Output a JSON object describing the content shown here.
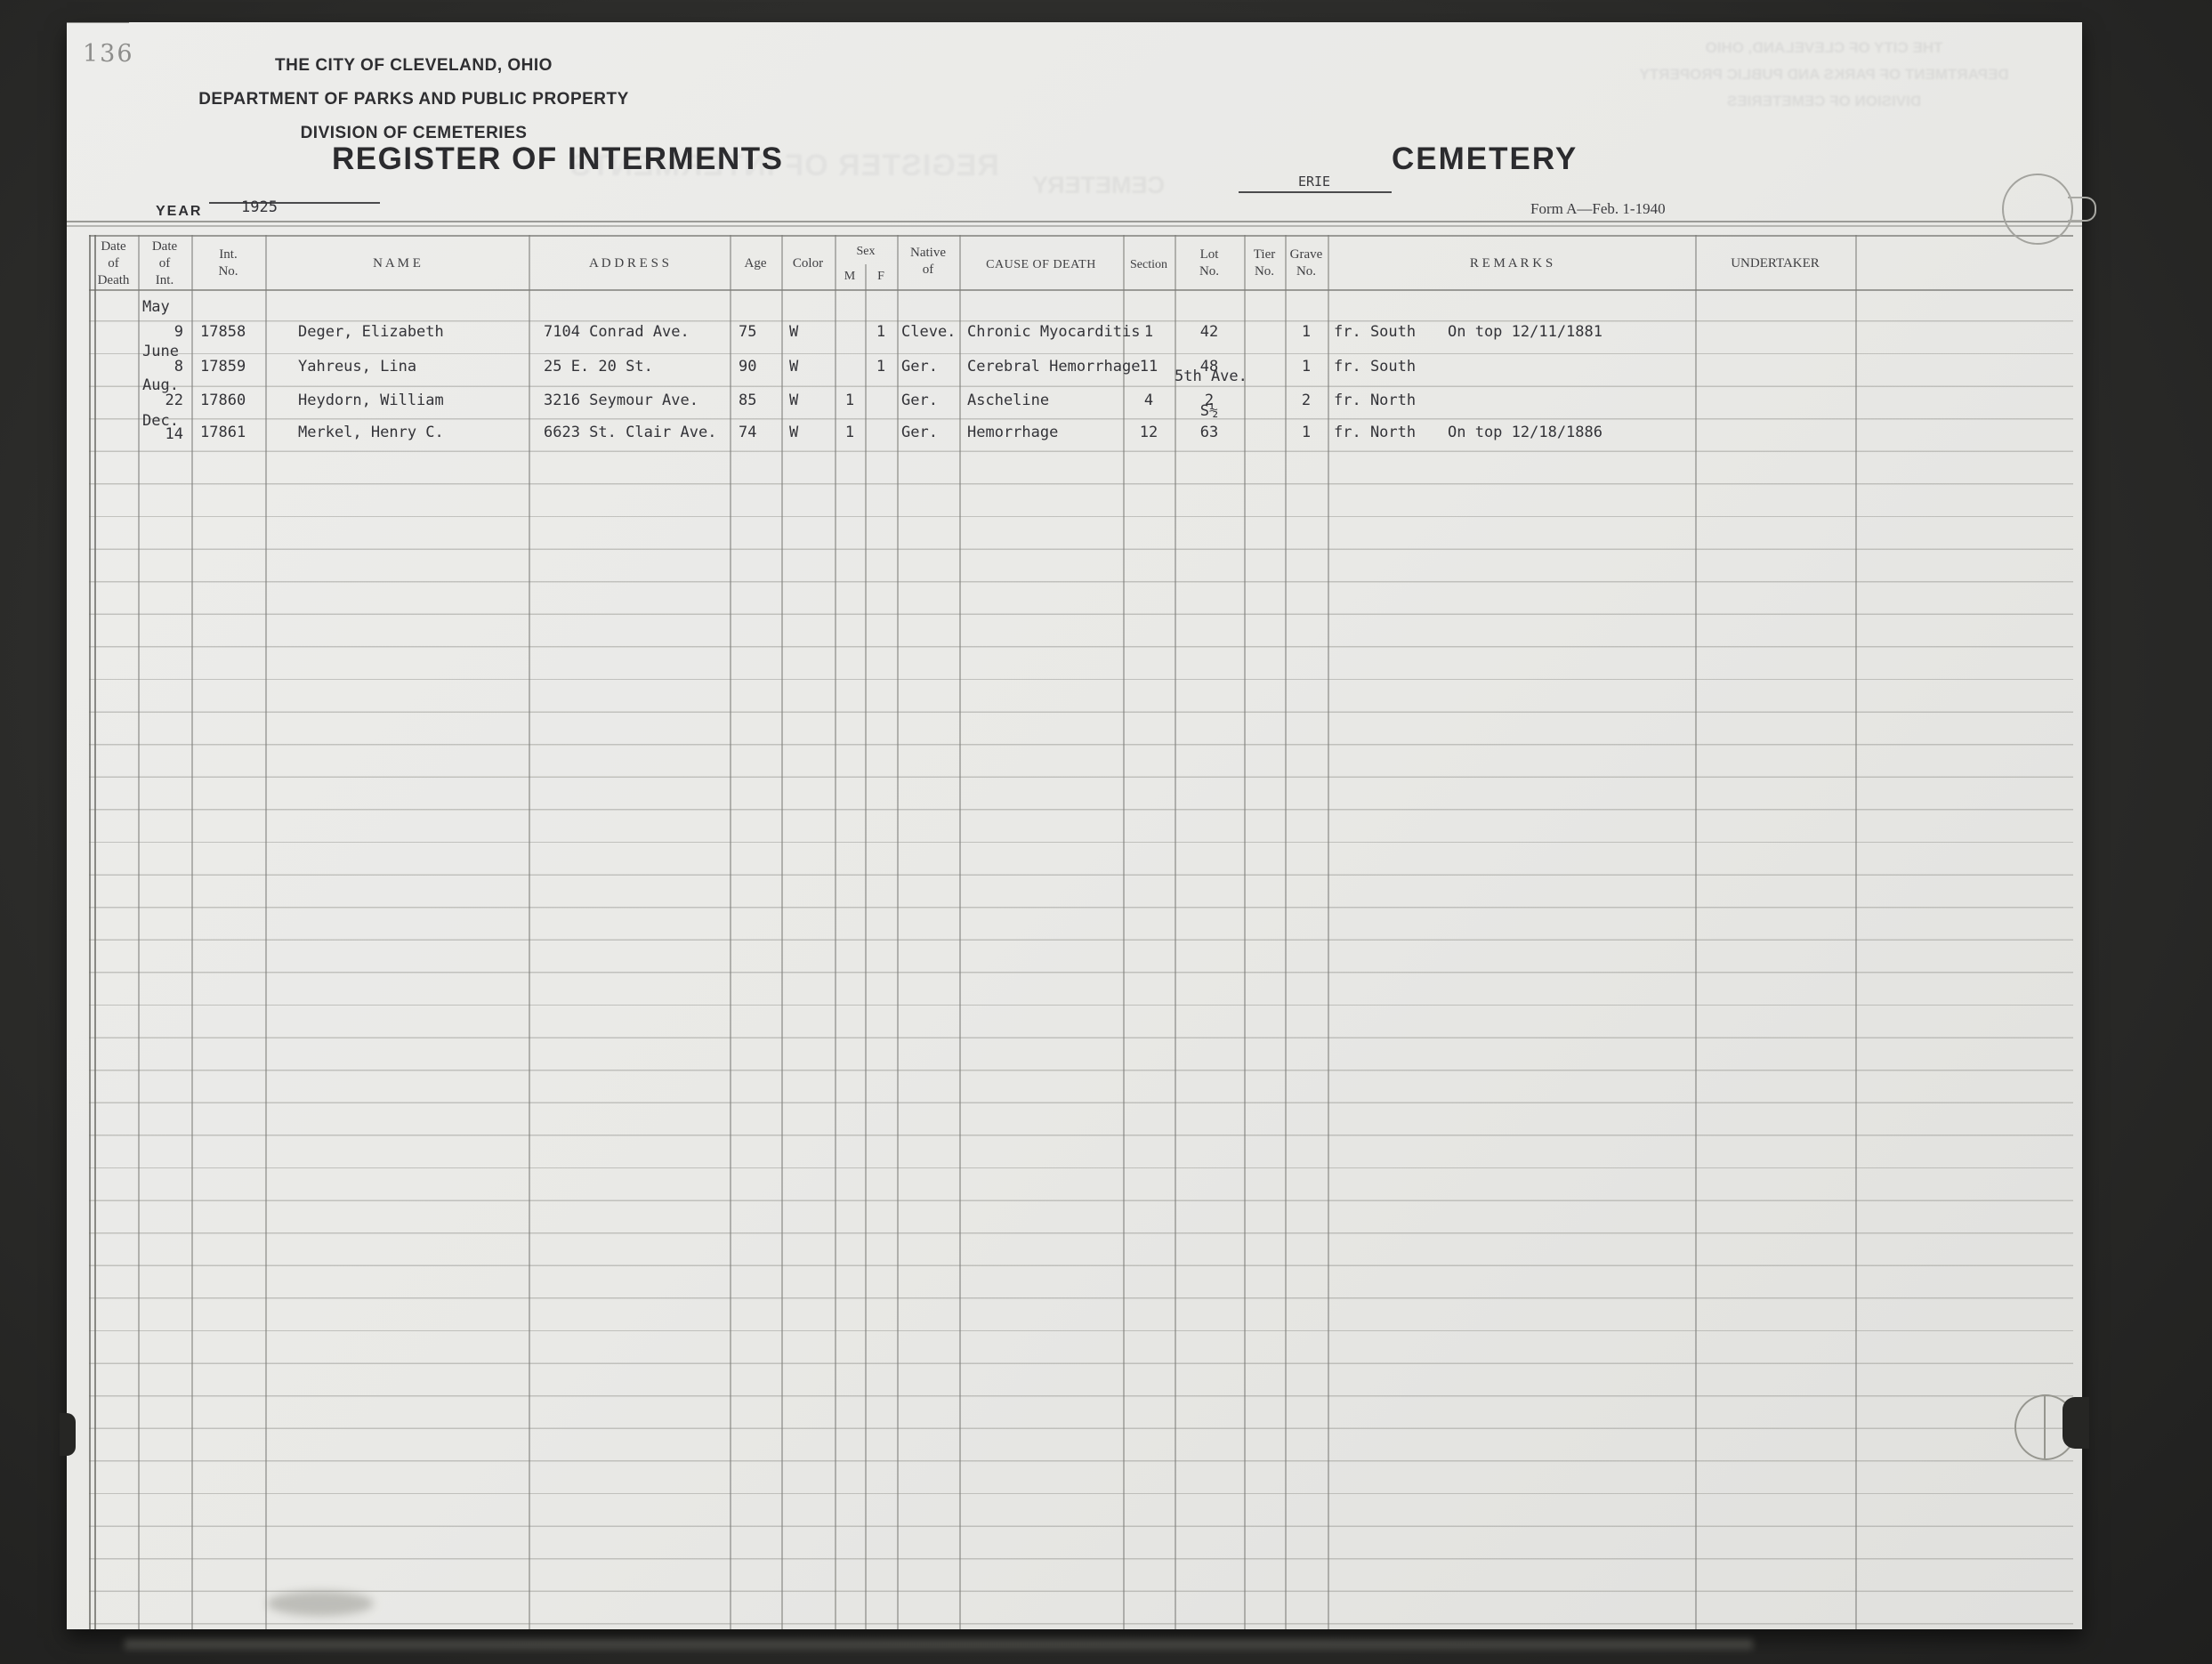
{
  "page": {
    "number": "136",
    "form_note": "Form A—Feb. 1-1940"
  },
  "header": {
    "org_line1": "THE CITY OF CLEVELAND, OHIO",
    "org_line2": "DEPARTMENT OF PARKS AND PUBLIC PROPERTY",
    "org_line3": "DIVISION OF CEMETERIES",
    "title": "REGISTER OF INTERMENTS",
    "cemetery_name": "ERIE",
    "cemetery_label": "CEMETERY",
    "year_label": "YEAR",
    "year_value": "1925"
  },
  "table": {
    "columns": {
      "date_of_death": "Date\nof\nDeath",
      "date_of_int": "Date\nof\nInt.",
      "int_no": "Int.\nNo.",
      "name": "N A M E",
      "address": "A D D R E S S",
      "age": "Age",
      "color": "Color",
      "sex": "Sex",
      "sex_m": "M",
      "sex_f": "F",
      "native_of": "Native\nof",
      "cause_of_death": "CAUSE OF DEATH",
      "section": "Section",
      "lot_no": "Lot\nNo.",
      "tier_no": "Tier\nNo.",
      "grave_no": "Grave\nNo.",
      "remarks": "R E M A R K S",
      "undertaker": "UNDERTAKER"
    },
    "rows": [
      {
        "month": "May",
        "day": "9",
        "int_no": "17858",
        "name": "Deger, Elizabeth",
        "address": "7104 Conrad Ave.",
        "age": "75",
        "color": "W",
        "sex_m": "",
        "sex_f": "1",
        "native_of": "Cleve.",
        "cause": "Chronic Myocarditis",
        "section": "1",
        "lot_prefix": "",
        "lot": "42",
        "tier": "",
        "grave": "1",
        "remark_a": "fr. South",
        "remark_b": "On top 12/11/1881",
        "undertaker": ""
      },
      {
        "month": "June",
        "day": "8",
        "int_no": "17859",
        "name": "Yahreus, Lina",
        "address": "25 E. 20 St.",
        "age": "90",
        "color": "W",
        "sex_m": "",
        "sex_f": "1",
        "native_of": "Ger.",
        "cause": "Cerebral Hemorrhage",
        "section": "11",
        "lot_prefix": "",
        "lot": "48",
        "tier": "",
        "grave": "1",
        "remark_a": "fr. South",
        "remark_b": "",
        "undertaker": ""
      },
      {
        "month": "Aug.",
        "day": "22",
        "int_no": "17860",
        "name": "Heydorn, William",
        "address": "3216 Seymour Ave.",
        "age": "85",
        "color": "W",
        "sex_m": "1",
        "sex_f": "",
        "native_of": "Ger.",
        "cause": "Ascheline",
        "section": "4",
        "lot_prefix": "5th Ave.",
        "lot": "2",
        "tier": "",
        "grave": "2",
        "remark_a": "fr. North",
        "remark_b": "",
        "undertaker": ""
      },
      {
        "month": "Dec.",
        "day": "14",
        "int_no": "17861",
        "name": "Merkel, Henry C.",
        "address": "6623 St. Clair Ave.",
        "age": "74",
        "color": "W",
        "sex_m": "1",
        "sex_f": "",
        "native_of": "Ger.",
        "cause": "Hemorrhage",
        "section": "12",
        "lot_prefix": "S½",
        "lot": "63",
        "tier": "",
        "grave": "1",
        "remark_a": "fr. North",
        "remark_b": "On top 12/18/1886",
        "undertaker": ""
      }
    ]
  },
  "ghost": {
    "org_block": "THE CITY OF CLEVELAND, OHIO\nDEPARTMENT OF PARKS AND PUBLIC PROPERTY\nDIVISION OF CEMETERIES",
    "title": "REGISTER OF INTERMENTS",
    "cemetery": "CEMETERY"
  },
  "colors": {
    "paper": "#e9e9e6",
    "ink": "#333338",
    "background": "#2c2c2a"
  }
}
